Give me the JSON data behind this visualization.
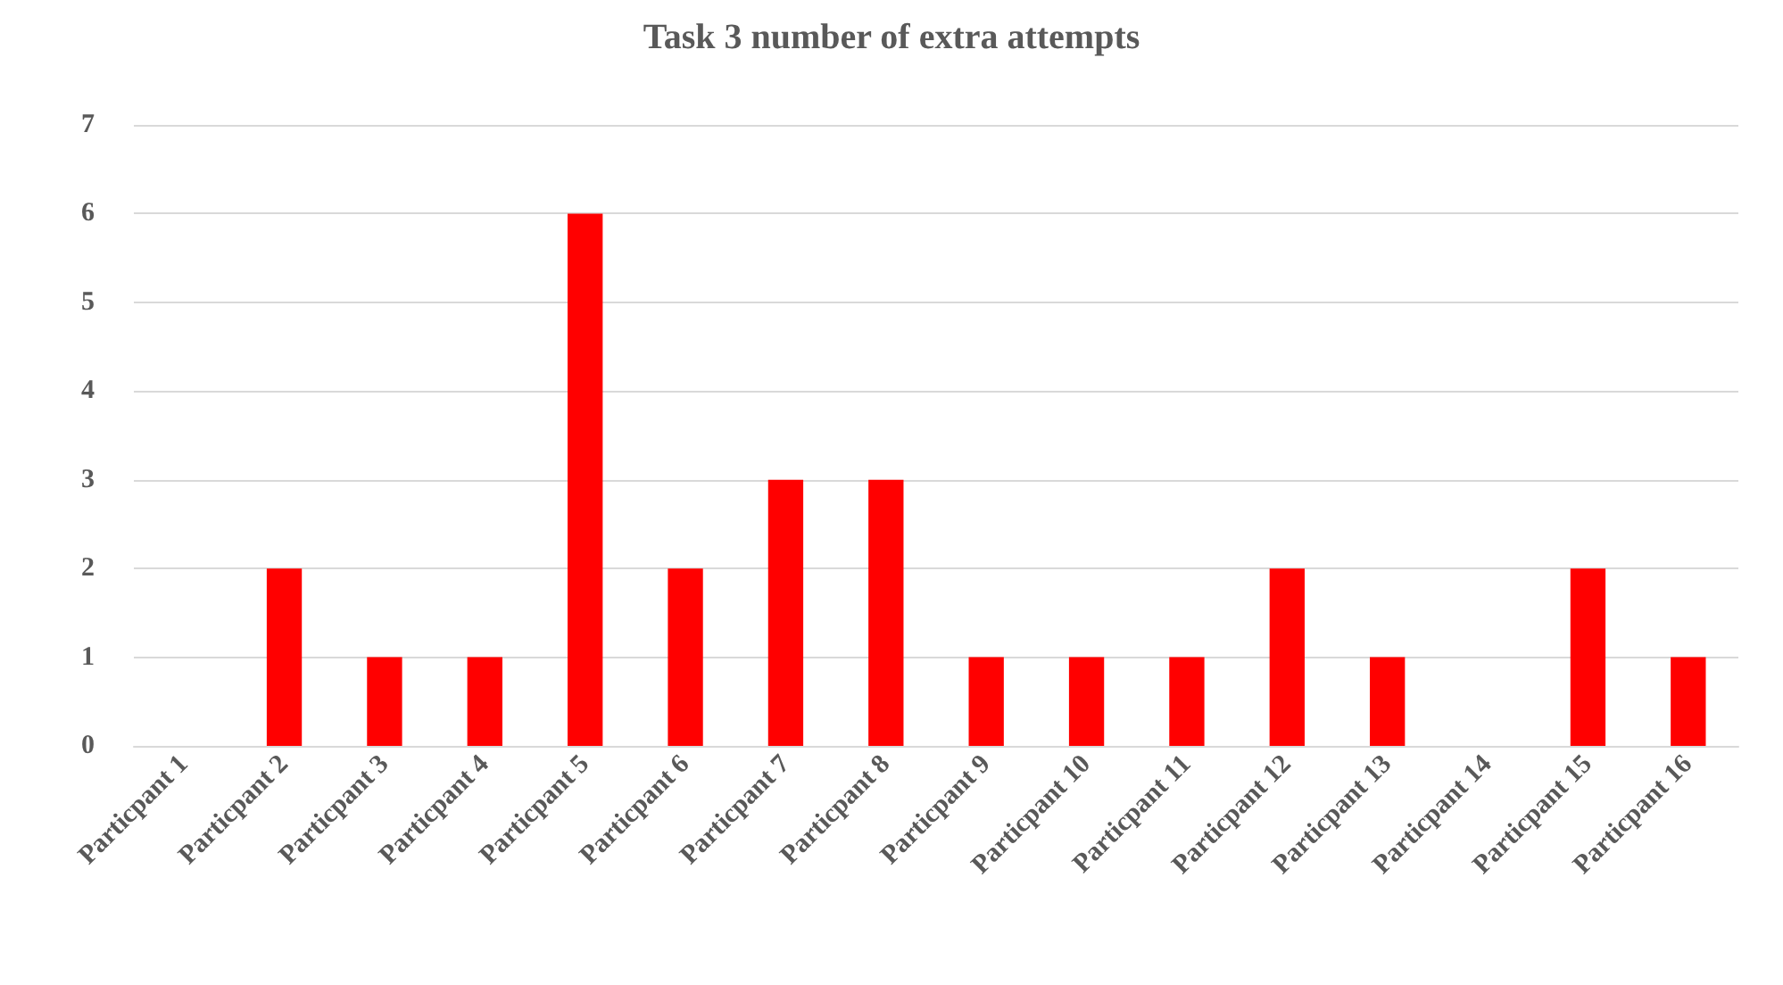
{
  "chart_data": {
    "type": "bar",
    "title": "Task 3 number of extra attempts",
    "categories": [
      "Particpant 1",
      "Particpant 2",
      "Particpant 3",
      "Particpant 4",
      "Particpant 5",
      "Particpant 6",
      "Particpant 7",
      "Particpant 8",
      "Particpant 9",
      "Particpant 10",
      "Particpant 11",
      "Particpant 12",
      "Particpant 13",
      "Particpant 14",
      "Particpant 15",
      "Particpant 16"
    ],
    "values": [
      0,
      2,
      1,
      1,
      6,
      2,
      3,
      3,
      1,
      1,
      1,
      2,
      1,
      0,
      2,
      1
    ],
    "color": "#ff0000",
    "ylim": [
      0,
      7
    ],
    "yticks": [
      0,
      1,
      2,
      3,
      4,
      5,
      6,
      7
    ],
    "grid": "y"
  }
}
